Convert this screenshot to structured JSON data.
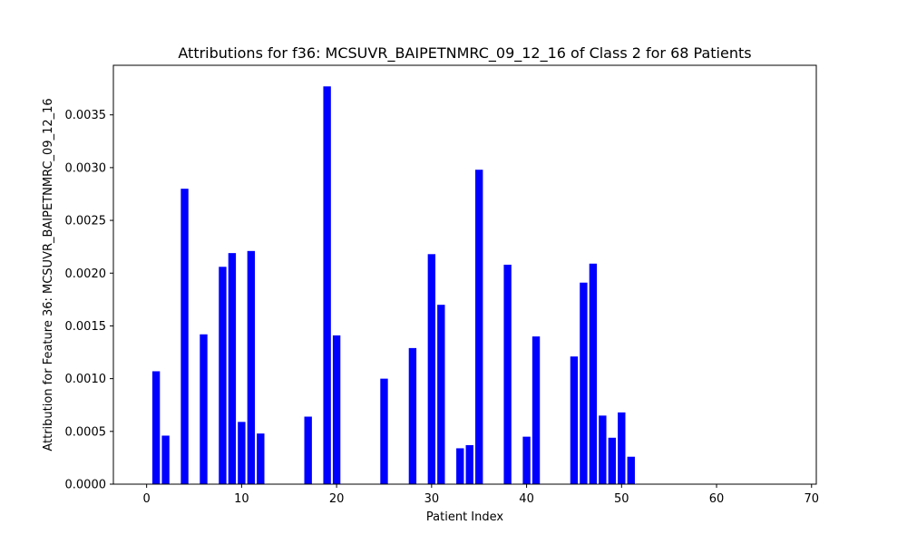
{
  "chart_data": {
    "type": "bar",
    "title": "Attributions for f36: MCSUVR_BAIPETNMRC_09_12_16 of Class 2 for 68 Patients",
    "xlabel": "Patient Index",
    "ylabel": "Attribution for Feature 36: MCSUVR_BAIPETNMRC_09_12_16",
    "xlim": [
      -3.5,
      70.5
    ],
    "ylim": [
      0,
      0.00397
    ],
    "x_ticks": [
      0,
      10,
      20,
      30,
      40,
      50,
      60,
      70
    ],
    "x_tick_labels": [
      "0",
      "10",
      "20",
      "30",
      "40",
      "50",
      "60",
      "70"
    ],
    "y_ticks": [
      0,
      0.0005,
      0.001,
      0.0015,
      0.002,
      0.0025,
      0.003,
      0.0035
    ],
    "y_tick_labels": [
      "0.0000",
      "0.0005",
      "0.0010",
      "0.0015",
      "0.0020",
      "0.0025",
      "0.0030",
      "0.0035"
    ],
    "bar_color": "#0000ff",
    "grid": false,
    "legend": "none",
    "x": [
      0,
      1,
      2,
      3,
      4,
      5,
      6,
      7,
      8,
      9,
      10,
      11,
      12,
      13,
      14,
      15,
      16,
      17,
      18,
      19,
      20,
      21,
      22,
      23,
      24,
      25,
      26,
      27,
      28,
      29,
      30,
      31,
      32,
      33,
      34,
      35,
      36,
      37,
      38,
      39,
      40,
      41,
      42,
      43,
      44,
      45,
      46,
      47,
      48,
      49,
      50,
      51,
      52,
      53,
      54,
      55,
      56,
      57,
      58,
      59,
      60,
      61,
      62,
      63,
      64,
      65,
      66,
      67
    ],
    "values": [
      0,
      0.00107,
      0.00046,
      0,
      0.0028,
      0,
      0.00142,
      0,
      0.00206,
      0.00219,
      0.00059,
      0.00221,
      0.00048,
      0,
      0,
      0,
      0,
      0.00064,
      0,
      0.00377,
      0.00141,
      0,
      0,
      0,
      0,
      0.001,
      0,
      0,
      0.00129,
      0,
      0.00218,
      0.0017,
      0,
      0.00034,
      0.00037,
      0.00298,
      0,
      0,
      0.00208,
      0,
      0.00045,
      0.0014,
      0,
      0,
      0,
      0.00121,
      0.00191,
      0.00209,
      0.00065,
      0.00044,
      0.00068,
      0.00026,
      0,
      0,
      0,
      0,
      0,
      0,
      0,
      0,
      0,
      0,
      0,
      0,
      0,
      0,
      0,
      0
    ]
  }
}
